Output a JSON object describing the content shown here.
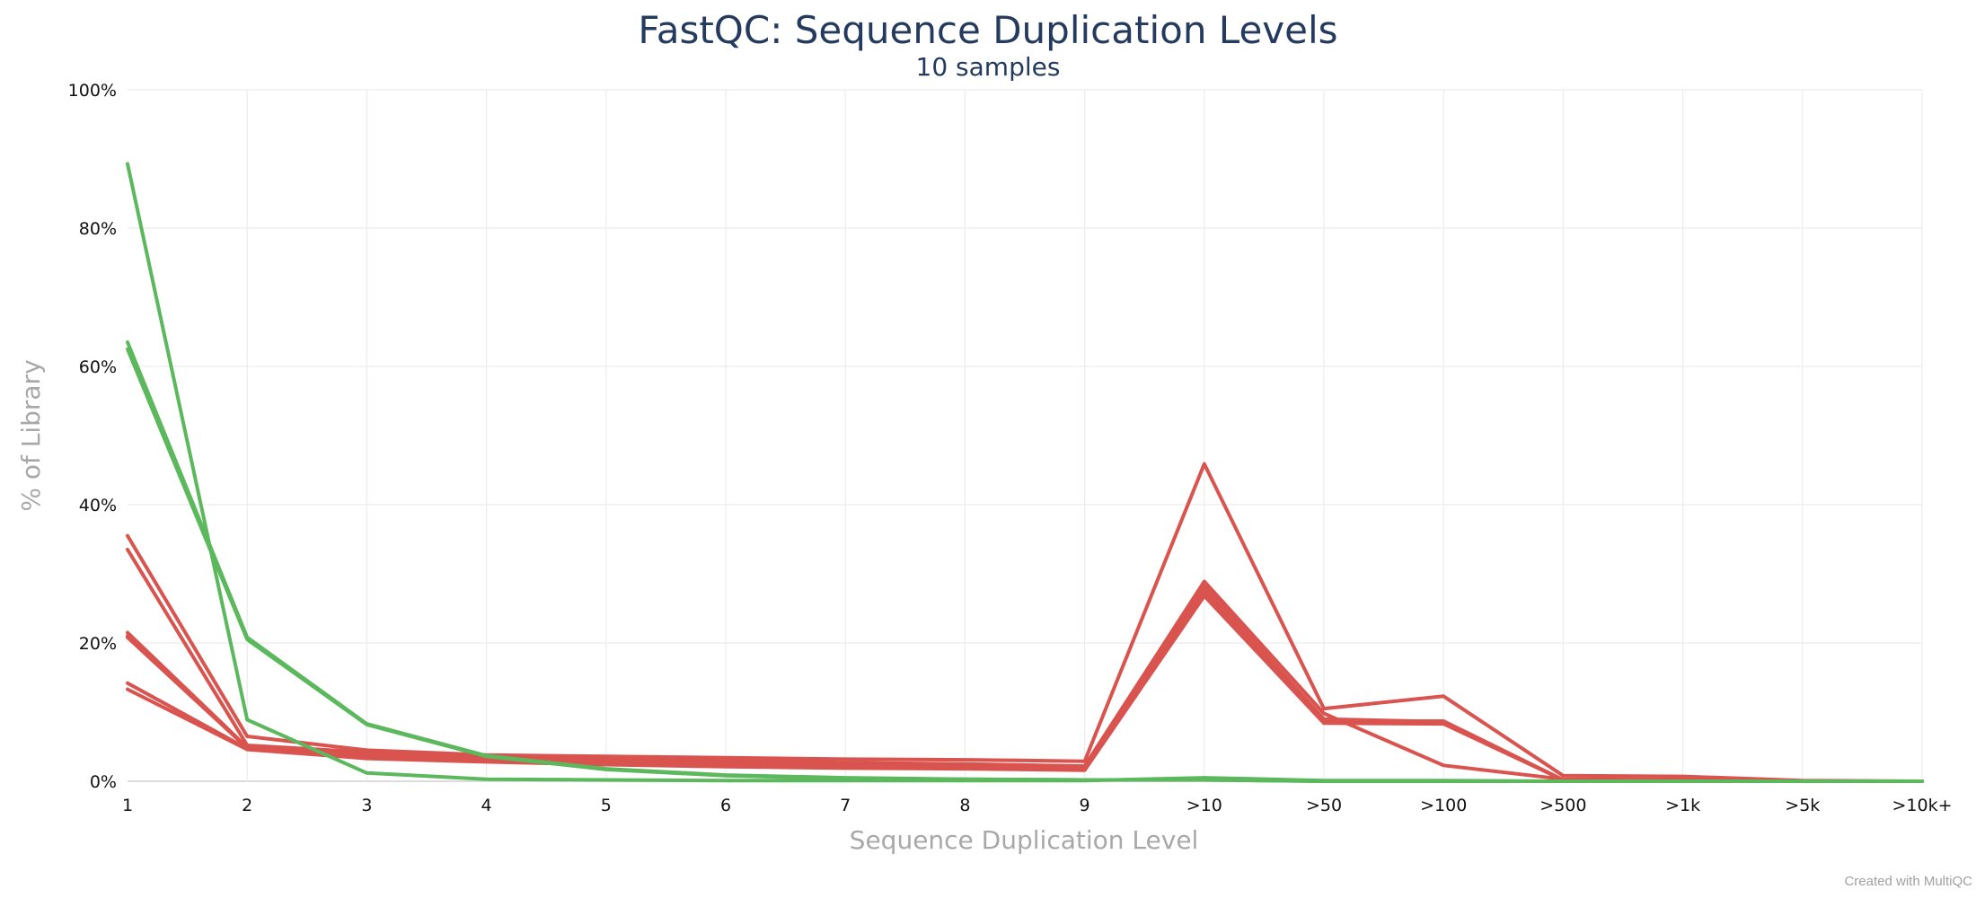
{
  "chart_data": {
    "type": "line",
    "title": "FastQC: Sequence Duplication Levels",
    "subtitle": "10 samples",
    "xlabel": "Sequence Duplication Level",
    "ylabel": "% of Library",
    "categories": [
      "1",
      "2",
      "3",
      "4",
      "5",
      "6",
      "7",
      "8",
      "9",
      ">10",
      ">50",
      ">100",
      ">500",
      ">1k",
      ">5k",
      ">10k+"
    ],
    "y_ticks": [
      "0%",
      "20%",
      "40%",
      "60%",
      "80%",
      "100%"
    ],
    "ylim": [
      0,
      100
    ],
    "grid": true,
    "legend": "none",
    "colors": {
      "pass": "#5cb85c",
      "fail": "#d9534f"
    },
    "series": [
      {
        "status": "pass",
        "values": [
          89.3,
          8.9,
          1.2,
          0.3,
          0.2,
          0.1,
          0.1,
          0.1,
          0.1,
          0.5,
          0.1,
          0.1,
          0.0,
          0.0,
          0.0,
          0.0
        ]
      },
      {
        "status": "pass",
        "values": [
          63.5,
          20.8,
          8.3,
          3.7,
          1.8,
          0.9,
          0.5,
          0.3,
          0.2,
          0.2,
          0.0,
          0.0,
          0.0,
          0.0,
          0.0,
          0.0
        ]
      },
      {
        "status": "pass",
        "values": [
          62.5,
          20.5,
          8.2,
          3.6,
          1.7,
          0.8,
          0.4,
          0.3,
          0.2,
          0.2,
          0.0,
          0.0,
          0.0,
          0.0,
          0.0,
          0.0
        ]
      },
      {
        "status": "fail",
        "values": [
          35.5,
          6.5,
          4.5,
          3.8,
          3.6,
          3.4,
          3.2,
          3.1,
          2.9,
          45.9,
          10.5,
          12.3,
          0.8,
          0.7,
          0.1,
          0.0
        ]
      },
      {
        "status": "fail",
        "values": [
          33.5,
          5.2,
          4.2,
          3.7,
          3.3,
          3.0,
          2.7,
          2.5,
          2.2,
          28.9,
          9.8,
          2.3,
          0.3,
          0.2,
          0.0,
          0.0
        ]
      },
      {
        "status": "fail",
        "values": [
          21.5,
          4.9,
          3.9,
          3.4,
          3.0,
          2.6,
          2.3,
          2.1,
          1.9,
          28.6,
          8.6,
          8.7,
          0.2,
          0.1,
          0.0,
          0.0
        ]
      },
      {
        "status": "fail",
        "values": [
          20.8,
          4.8,
          3.7,
          3.2,
          2.8,
          2.5,
          2.2,
          2.0,
          1.8,
          27.9,
          8.7,
          8.5,
          0.2,
          0.1,
          0.0,
          0.0
        ]
      },
      {
        "status": "fail",
        "values": [
          14.2,
          4.7,
          3.5,
          3.0,
          2.6,
          2.3,
          2.0,
          1.9,
          1.7,
          27.5,
          8.5,
          8.4,
          0.2,
          0.1,
          0.0,
          0.0
        ]
      },
      {
        "status": "fail",
        "values": [
          13.3,
          4.6,
          3.3,
          2.8,
          2.4,
          2.1,
          1.9,
          1.8,
          1.6,
          26.8,
          8.4,
          8.3,
          0.2,
          0.1,
          0.0,
          0.0
        ]
      },
      {
        "status": "fail",
        "values": [
          21.0,
          4.9,
          3.8,
          3.3,
          2.9,
          2.5,
          2.2,
          2.1,
          1.9,
          28.2,
          9.0,
          8.6,
          0.2,
          0.1,
          0.0,
          0.0
        ]
      }
    ]
  },
  "footer": {
    "credit": "Created with MultiQC"
  }
}
